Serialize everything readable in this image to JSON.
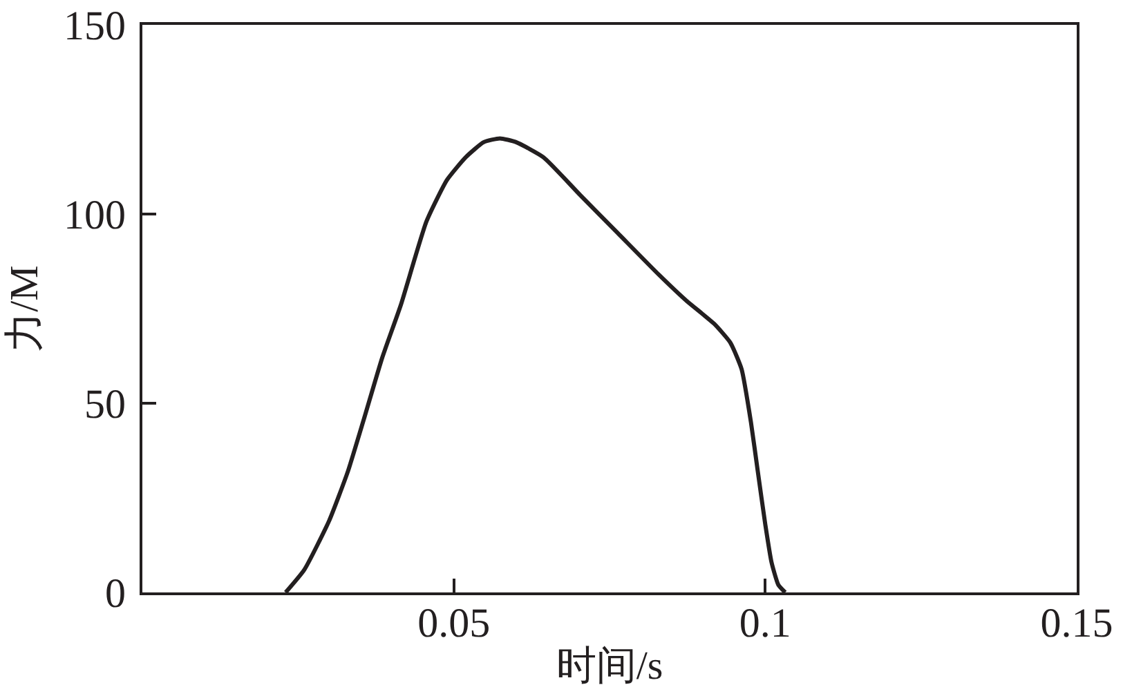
{
  "chart_data": {
    "type": "line",
    "xlabel": "时间/s",
    "ylabel": "力/M",
    "x": [
      0.023,
      0.026,
      0.03,
      0.033,
      0.0356,
      0.0385,
      0.0415,
      0.0456,
      0.0489,
      0.0519,
      0.0548,
      0.0574,
      0.06,
      0.0644,
      0.0703,
      0.0763,
      0.0829,
      0.0874,
      0.0918,
      0.0944,
      0.0962,
      0.0977,
      0.0988,
      0.1,
      0.101,
      0.1021,
      0.1032
    ],
    "series": [
      {
        "color": "#231f20",
        "values": [
          0,
          6,
          19,
          32,
          46,
          62,
          76,
          98,
          109,
          115,
          119,
          120,
          119,
          115,
          105,
          95,
          84,
          77,
          71,
          66,
          59,
          45,
          32,
          18,
          8,
          2,
          0
        ]
      }
    ],
    "xlim": [
      0,
      0.15
    ],
    "ylim": [
      0,
      150
    ],
    "xticks": [
      0.05,
      0.1,
      0.15
    ],
    "yticks": [
      0,
      50,
      100,
      150
    ],
    "grid": false,
    "line_style": "solid"
  }
}
